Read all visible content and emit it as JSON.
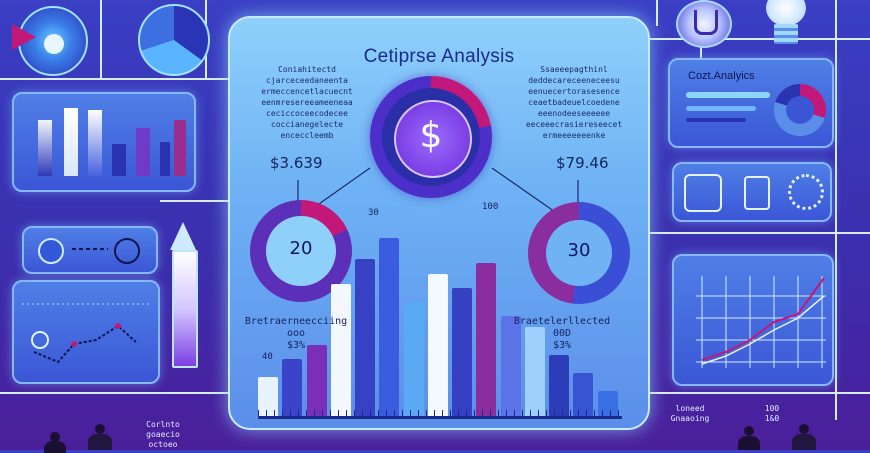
{
  "main": {
    "title": "Cetiprse Analysis",
    "left_blurb": [
      "Coniahitectd",
      "cjarceceedaneenta",
      "ermeccencetlacuecnt",
      "eenmresereeameeneaa",
      "ceciccoceecodecee",
      "coccianegelecte",
      "enceccleemb"
    ],
    "right_blurb": [
      "Ssaeeepagthinl",
      "deddecareceeneceesu",
      "eenuecertorasesence",
      "ceaetbadeuelcoedene",
      "eeenodeeseeeeee",
      "eeceeecrasiereseecet",
      "ermeeeeeeenke"
    ],
    "left_price": "$3.639",
    "right_price": "$79.46",
    "left_ring_value": "20",
    "right_ring_value": "30",
    "left_caption": [
      "Bretraerneecciing",
      "ooo",
      "$3%"
    ],
    "right_caption": [
      "Braetelerllected",
      "00D",
      "$3%"
    ],
    "left_small": "40",
    "top_label_a": "100",
    "top_label_b": "30",
    "bars": [
      {
        "value": 22,
        "color": "#e9f2ff"
      },
      {
        "value": 32,
        "color": "#3b43c9"
      },
      {
        "value": 40,
        "color": "#7a2fb8"
      },
      {
        "value": 74,
        "color": "#f3f7ff"
      },
      {
        "value": 88,
        "color": "#3641c4"
      },
      {
        "value": 100,
        "color": "#3a5de0"
      },
      {
        "value": 64,
        "color": "#5aa9f5"
      },
      {
        "value": 80,
        "color": "#f4f8ff"
      },
      {
        "value": 72,
        "color": "#3540c2"
      },
      {
        "value": 86,
        "color": "#8a2d9e"
      },
      {
        "value": 56,
        "color": "#5b73e6"
      },
      {
        "value": 50,
        "color": "#9fd0fb"
      },
      {
        "value": 34,
        "color": "#2d3db8"
      },
      {
        "value": 24,
        "color": "#3754d2"
      },
      {
        "value": 14,
        "color": "#3a6fe2"
      }
    ]
  },
  "right_panel": {
    "title": "Cozt.Analyics"
  },
  "footer": {
    "left_text": [
      "Corlnto",
      "goaecio",
      "octoeo"
    ],
    "right_text_a": [
      "loneed",
      "Gnaaoing"
    ],
    "right_text_b": [
      "100",
      "1&0"
    ]
  },
  "colors": {
    "accent": "#7b3fe4",
    "magenta": "#c2187a",
    "cyan": "#9fe3ff"
  }
}
